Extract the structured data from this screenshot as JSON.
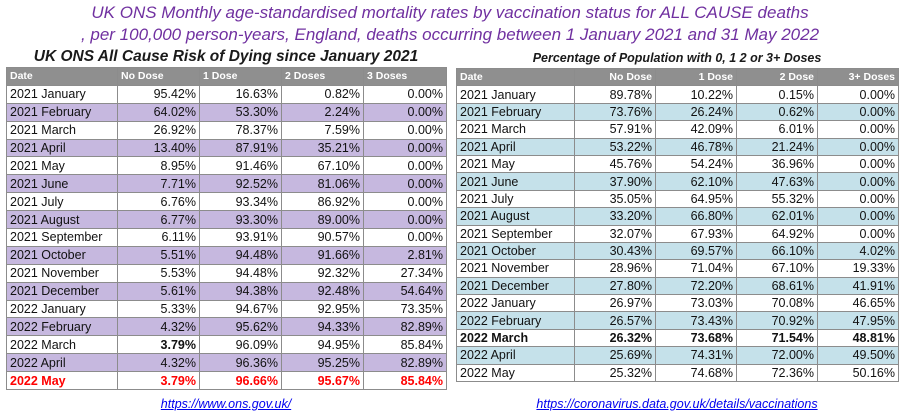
{
  "title": {
    "line1": "UK ONS Monthly age-standardised mortality rates by vaccination status for ALL CAUSE deaths",
    "line2": ", per 100,000 person-years, England, deaths occurring between 1 January 2021 and 31 May 2022"
  },
  "left_table": {
    "subtitle": "UK ONS All Cause Risk of Dying since January 2021",
    "headers": [
      "Date",
      "No Dose",
      "1 Dose",
      "2 Doses",
      "3 Doses"
    ],
    "rows": [
      {
        "date": "2021 January",
        "v": [
          "95.42%",
          "16.63%",
          "0.82%",
          "0.00%"
        ]
      },
      {
        "date": "2021 February",
        "v": [
          "64.02%",
          "53.30%",
          "2.24%",
          "0.00%"
        ]
      },
      {
        "date": "2021 March",
        "v": [
          "26.92%",
          "78.37%",
          "7.59%",
          "0.00%"
        ]
      },
      {
        "date": "2021 April",
        "v": [
          "13.40%",
          "87.91%",
          "35.21%",
          "0.00%"
        ]
      },
      {
        "date": "2021 May",
        "v": [
          "8.95%",
          "91.46%",
          "67.10%",
          "0.00%"
        ]
      },
      {
        "date": "2021 June",
        "v": [
          "7.71%",
          "92.52%",
          "81.06%",
          "0.00%"
        ]
      },
      {
        "date": "2021 July",
        "v": [
          "6.76%",
          "93.34%",
          "86.92%",
          "0.00%"
        ]
      },
      {
        "date": "2021 August",
        "v": [
          "6.77%",
          "93.30%",
          "89.00%",
          "0.00%"
        ]
      },
      {
        "date": "2021 September",
        "v": [
          "6.11%",
          "93.91%",
          "90.57%",
          "0.00%"
        ]
      },
      {
        "date": "2021 October",
        "v": [
          "5.51%",
          "94.48%",
          "91.66%",
          "2.81%"
        ]
      },
      {
        "date": "2021 November",
        "v": [
          "5.53%",
          "94.48%",
          "92.32%",
          "27.34%"
        ]
      },
      {
        "date": "2021 December",
        "v": [
          "5.61%",
          "94.38%",
          "92.48%",
          "54.64%"
        ]
      },
      {
        "date": "2022 January",
        "v": [
          "5.33%",
          "94.67%",
          "92.95%",
          "73.35%"
        ]
      },
      {
        "date": "2022 February",
        "v": [
          "4.32%",
          "95.62%",
          "94.33%",
          "82.89%"
        ]
      },
      {
        "date": "2022 March",
        "v": [
          "3.79%",
          "96.09%",
          "94.95%",
          "85.84%"
        ]
      },
      {
        "date": "2022 April",
        "v": [
          "4.32%",
          "96.36%",
          "95.25%",
          "82.89%"
        ]
      },
      {
        "date": "2022 May",
        "v": [
          "3.79%",
          "96.66%",
          "95.67%",
          "85.84%"
        ]
      }
    ],
    "link": "https://www.ons.gov.uk/"
  },
  "right_table": {
    "subtitle": "Percentage of Population with 0, 1 2 or 3+ Doses",
    "headers": [
      "Date",
      "No Dose",
      "1 Dose",
      "2 Dose",
      "3+ Doses"
    ],
    "rows": [
      {
        "date": "2021 January",
        "v": [
          "89.78%",
          "10.22%",
          "0.15%",
          "0.00%"
        ]
      },
      {
        "date": "2021 February",
        "v": [
          "73.76%",
          "26.24%",
          "0.62%",
          "0.00%"
        ]
      },
      {
        "date": "2021 March",
        "v": [
          "57.91%",
          "42.09%",
          "6.01%",
          "0.00%"
        ]
      },
      {
        "date": "2021 April",
        "v": [
          "53.22%",
          "46.78%",
          "21.24%",
          "0.00%"
        ]
      },
      {
        "date": "2021 May",
        "v": [
          "45.76%",
          "54.24%",
          "36.96%",
          "0.00%"
        ]
      },
      {
        "date": "2021 June",
        "v": [
          "37.90%",
          "62.10%",
          "47.63%",
          "0.00%"
        ]
      },
      {
        "date": "2021 July",
        "v": [
          "35.05%",
          "64.95%",
          "55.32%",
          "0.00%"
        ]
      },
      {
        "date": "2021 August",
        "v": [
          "33.20%",
          "66.80%",
          "62.01%",
          "0.00%"
        ]
      },
      {
        "date": "2021 September",
        "v": [
          "32.07%",
          "67.93%",
          "64.92%",
          "0.00%"
        ]
      },
      {
        "date": "2021 October",
        "v": [
          "30.43%",
          "69.57%",
          "66.10%",
          "4.02%"
        ]
      },
      {
        "date": "2021 November",
        "v": [
          "28.96%",
          "71.04%",
          "67.10%",
          "19.33%"
        ]
      },
      {
        "date": "2021 December",
        "v": [
          "27.80%",
          "72.20%",
          "68.61%",
          "41.91%"
        ]
      },
      {
        "date": "2022 January",
        "v": [
          "26.97%",
          "73.03%",
          "70.08%",
          "46.65%"
        ]
      },
      {
        "date": "2022 February",
        "v": [
          "26.57%",
          "73.43%",
          "70.92%",
          "47.95%"
        ]
      },
      {
        "date": "2022 March",
        "v": [
          "26.32%",
          "73.68%",
          "71.54%",
          "48.81%"
        ]
      },
      {
        "date": "2022 April",
        "v": [
          "25.69%",
          "74.31%",
          "72.00%",
          "49.50%"
        ]
      },
      {
        "date": "2022 May",
        "v": [
          "25.32%",
          "74.68%",
          "72.36%",
          "50.16%"
        ]
      }
    ],
    "link": "https://coronavirus.data.gov.uk/details/vaccinations"
  },
  "colors": {
    "title": "#7030a0",
    "header_bg": "#8f8f8f",
    "left_band": "#c6b8df",
    "right_band": "#c5e1ea",
    "highlight_red": "#ff0000"
  }
}
